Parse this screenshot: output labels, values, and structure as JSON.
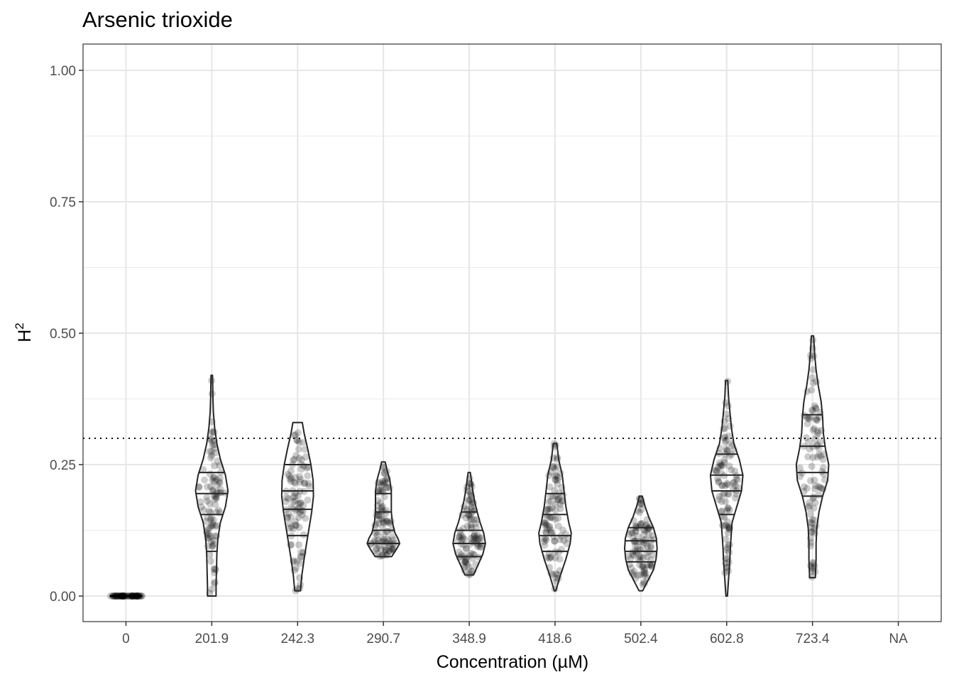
{
  "chart_data": {
    "type": "violin",
    "title": "Arsenic trioxide",
    "xlabel": "Concentration (µM)",
    "ylabel": "H",
    "ylabel_superscript": "2",
    "ylim": [
      -0.048,
      1.048
    ],
    "yticks": [
      0.0,
      0.25,
      0.5,
      0.75,
      1.0
    ],
    "ytick_labels": [
      "0.00",
      "0.25",
      "0.50",
      "0.75",
      "1.00"
    ],
    "categories": [
      "0",
      "201.9",
      "242.3",
      "290.7",
      "348.9",
      "418.6",
      "502.4",
      "602.8",
      "723.4",
      "NA"
    ],
    "reference_line": 0.3,
    "quantile_lines": [
      0.2,
      0.4,
      0.6,
      0.8
    ],
    "groups": [
      {
        "category": "0",
        "min": 0.0,
        "max": 0.0,
        "quantiles": [],
        "n_points": 60,
        "density": [
          [
            0.0,
            0.45
          ]
        ]
      },
      {
        "category": "201.9",
        "min": 0.0,
        "max": 0.42,
        "quantiles": [
          0.085,
          0.155,
          0.195,
          0.235
        ],
        "n_points": 100,
        "density": [
          [
            0.0,
            0.12
          ],
          [
            0.02,
            0.12
          ],
          [
            0.05,
            0.13
          ],
          [
            0.08,
            0.14
          ],
          [
            0.11,
            0.17
          ],
          [
            0.14,
            0.24
          ],
          [
            0.17,
            0.38
          ],
          [
            0.2,
            0.45
          ],
          [
            0.23,
            0.38
          ],
          [
            0.26,
            0.24
          ],
          [
            0.29,
            0.14
          ],
          [
            0.32,
            0.08
          ],
          [
            0.35,
            0.045
          ],
          [
            0.38,
            0.03
          ],
          [
            0.42,
            0.02
          ]
        ]
      },
      {
        "category": "242.3",
        "min": 0.01,
        "max": 0.33,
        "quantiles": [
          0.115,
          0.165,
          0.2,
          0.25
        ],
        "n_points": 100,
        "density": [
          [
            0.01,
            0.08
          ],
          [
            0.04,
            0.12
          ],
          [
            0.07,
            0.18
          ],
          [
            0.1,
            0.25
          ],
          [
            0.13,
            0.32
          ],
          [
            0.16,
            0.39
          ],
          [
            0.19,
            0.44
          ],
          [
            0.22,
            0.43
          ],
          [
            0.25,
            0.37
          ],
          [
            0.28,
            0.28
          ],
          [
            0.31,
            0.18
          ],
          [
            0.33,
            0.13
          ]
        ]
      },
      {
        "category": "290.7",
        "min": 0.075,
        "max": 0.255,
        "quantiles": [
          0.1,
          0.125,
          0.16,
          0.195
        ],
        "n_points": 100,
        "density": [
          [
            0.075,
            0.23
          ],
          [
            0.09,
            0.37
          ],
          [
            0.1,
            0.45
          ],
          [
            0.11,
            0.4
          ],
          [
            0.12,
            0.32
          ],
          [
            0.14,
            0.25
          ],
          [
            0.16,
            0.22
          ],
          [
            0.18,
            0.22
          ],
          [
            0.2,
            0.22
          ],
          [
            0.22,
            0.18
          ],
          [
            0.24,
            0.1
          ],
          [
            0.255,
            0.05
          ]
        ]
      },
      {
        "category": "348.9",
        "min": 0.04,
        "max": 0.235,
        "quantiles": [
          0.075,
          0.1,
          0.125,
          0.16
        ],
        "n_points": 100,
        "density": [
          [
            0.04,
            0.12
          ],
          [
            0.06,
            0.25
          ],
          [
            0.08,
            0.38
          ],
          [
            0.1,
            0.45
          ],
          [
            0.12,
            0.4
          ],
          [
            0.14,
            0.3
          ],
          [
            0.16,
            0.22
          ],
          [
            0.18,
            0.15
          ],
          [
            0.2,
            0.1
          ],
          [
            0.22,
            0.06
          ],
          [
            0.235,
            0.03
          ]
        ]
      },
      {
        "category": "418.6",
        "min": 0.01,
        "max": 0.29,
        "quantiles": [
          0.085,
          0.115,
          0.155,
          0.195
        ],
        "n_points": 100,
        "density": [
          [
            0.01,
            0.02
          ],
          [
            0.04,
            0.15
          ],
          [
            0.07,
            0.3
          ],
          [
            0.1,
            0.42
          ],
          [
            0.12,
            0.45
          ],
          [
            0.14,
            0.38
          ],
          [
            0.17,
            0.3
          ],
          [
            0.2,
            0.25
          ],
          [
            0.23,
            0.2
          ],
          [
            0.26,
            0.1
          ],
          [
            0.29,
            0.05
          ]
        ]
      },
      {
        "category": "502.4",
        "min": 0.01,
        "max": 0.19,
        "quantiles": [
          0.065,
          0.085,
          0.105,
          0.13
        ],
        "n_points": 100,
        "density": [
          [
            0.01,
            0.05
          ],
          [
            0.03,
            0.2
          ],
          [
            0.05,
            0.35
          ],
          [
            0.07,
            0.42
          ],
          [
            0.09,
            0.45
          ],
          [
            0.11,
            0.43
          ],
          [
            0.13,
            0.35
          ],
          [
            0.15,
            0.22
          ],
          [
            0.17,
            0.12
          ],
          [
            0.19,
            0.04
          ]
        ]
      },
      {
        "category": "602.8",
        "min": 0.0,
        "max": 0.41,
        "quantiles": [
          0.155,
          0.2,
          0.23,
          0.27
        ],
        "n_points": 100,
        "density": [
          [
            0.0,
            0.02
          ],
          [
            0.03,
            0.05
          ],
          [
            0.06,
            0.08
          ],
          [
            0.1,
            0.11
          ],
          [
            0.14,
            0.15
          ],
          [
            0.17,
            0.28
          ],
          [
            0.2,
            0.41
          ],
          [
            0.23,
            0.45
          ],
          [
            0.26,
            0.35
          ],
          [
            0.29,
            0.2
          ],
          [
            0.32,
            0.13
          ],
          [
            0.35,
            0.09
          ],
          [
            0.38,
            0.05
          ],
          [
            0.41,
            0.03
          ]
        ]
      },
      {
        "category": "723.4",
        "min": 0.035,
        "max": 0.495,
        "quantiles": [
          0.19,
          0.235,
          0.285,
          0.345
        ],
        "n_points": 100,
        "density": [
          [
            0.035,
            0.08
          ],
          [
            0.07,
            0.1
          ],
          [
            0.1,
            0.1
          ],
          [
            0.13,
            0.12
          ],
          [
            0.16,
            0.18
          ],
          [
            0.19,
            0.28
          ],
          [
            0.22,
            0.42
          ],
          [
            0.25,
            0.45
          ],
          [
            0.28,
            0.36
          ],
          [
            0.31,
            0.3
          ],
          [
            0.34,
            0.28
          ],
          [
            0.37,
            0.24
          ],
          [
            0.4,
            0.16
          ],
          [
            0.43,
            0.1
          ],
          [
            0.46,
            0.06
          ],
          [
            0.495,
            0.03
          ]
        ]
      },
      {
        "category": "NA",
        "min": null,
        "max": null,
        "quantiles": [],
        "n_points": 0,
        "density": []
      }
    ]
  }
}
